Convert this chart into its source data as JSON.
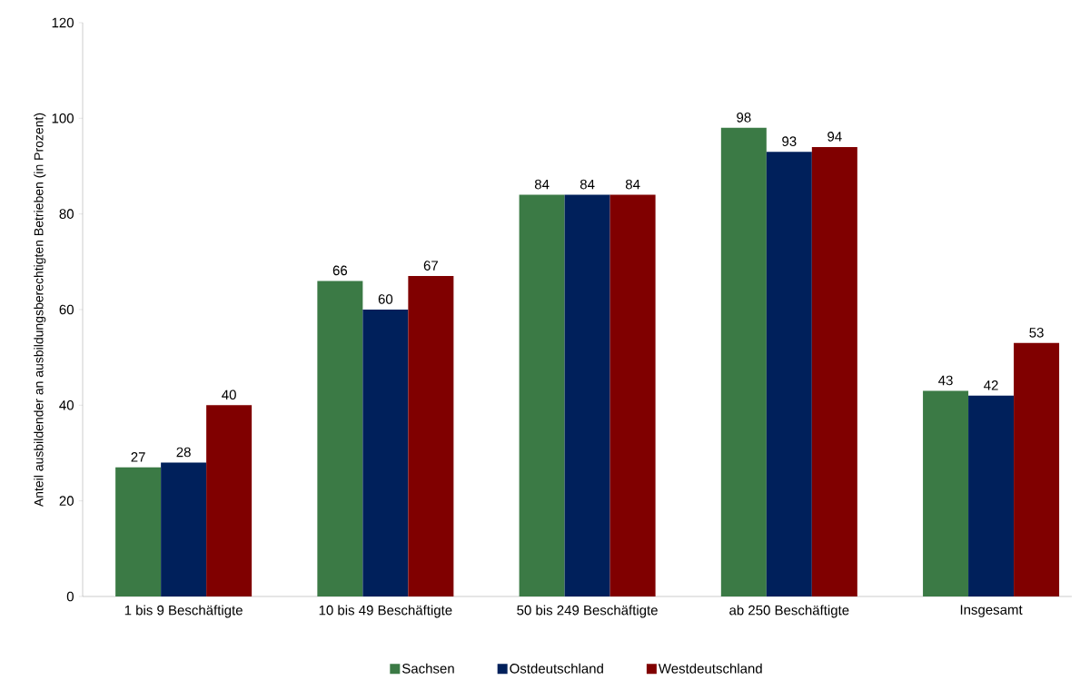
{
  "chart_data": {
    "type": "bar",
    "ylabel": "Anteil ausbildender an ausbildungsberechtigten Betrieben (in Prozent)",
    "categories": [
      "1 bis   9 Beschäftigte",
      "10 bis  49 Beschäftigte",
      "50 bis 249 Beschäftigte",
      "ab 250 Beschäftigte",
      "Insgesamt"
    ],
    "series": [
      {
        "name": "Sachsen",
        "color": "#3b7a45",
        "values": [
          27,
          66,
          84,
          98,
          43
        ]
      },
      {
        "name": "Ostdeutschland",
        "color": "#00205b",
        "values": [
          28,
          60,
          84,
          93,
          42
        ]
      },
      {
        "name": "Westdeutschland",
        "color": "#800000",
        "values": [
          40,
          67,
          84,
          94,
          53
        ]
      }
    ],
    "ylim": [
      0,
      120
    ],
    "yticks": [
      0,
      20,
      40,
      60,
      80,
      100,
      120
    ],
    "data_labels": true,
    "grid": false,
    "legend": "bottom"
  }
}
